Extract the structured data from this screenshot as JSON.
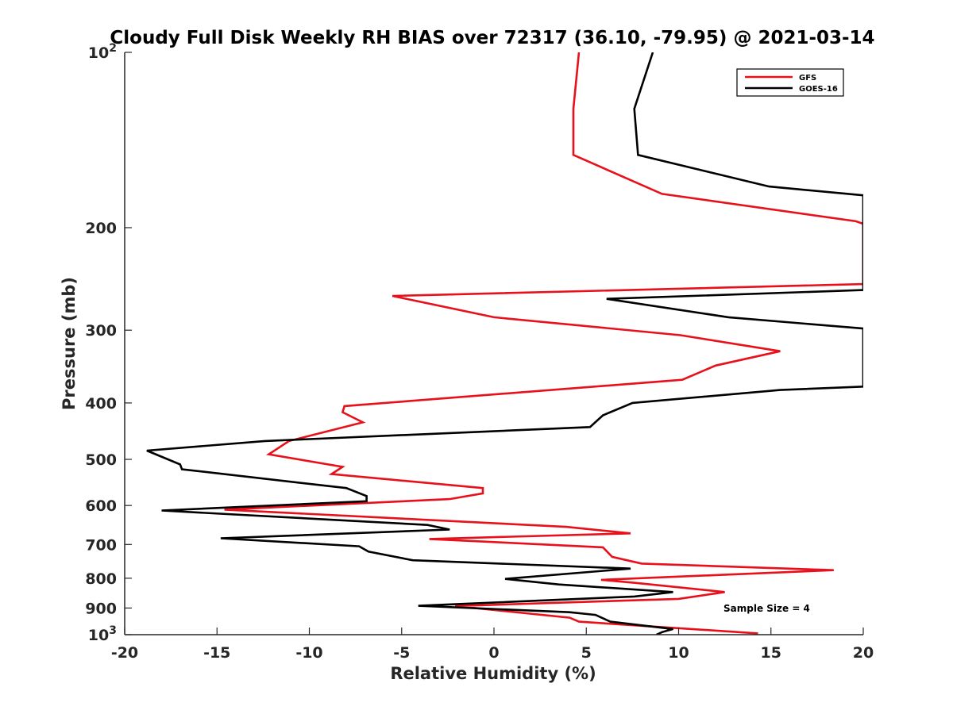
{
  "chart_data": {
    "type": "line",
    "title": "Cloudy Full Disk Weekly RH BIAS over 72317 (36.10, -79.95) @ 2021-03-14",
    "xlabel": "Relative Humidity (%)",
    "ylabel": "Pressure (mb)",
    "xlim": [
      -20,
      20
    ],
    "ylim": [
      100,
      1000
    ],
    "y_scale": "log",
    "y_reversed": true,
    "x_ticks": [
      "-20",
      "-15",
      "-10",
      "-5",
      "0",
      "5",
      "10",
      "15",
      "20"
    ],
    "y_ticks": [
      {
        "value": 100,
        "base": "10",
        "exp": "2"
      },
      {
        "value": 200,
        "label": "200"
      },
      {
        "value": 300,
        "label": "300"
      },
      {
        "value": 400,
        "label": "400"
      },
      {
        "value": 500,
        "label": "500"
      },
      {
        "value": 600,
        "label": "600"
      },
      {
        "value": 700,
        "label": "700"
      },
      {
        "value": 800,
        "label": "800"
      },
      {
        "value": 900,
        "label": "900"
      },
      {
        "value": 1000,
        "base": "10",
        "exp": "3"
      }
    ],
    "legend_position": "top-right",
    "grid": false,
    "annotation": "Sample Size = 4",
    "series": [
      {
        "name": "GFS",
        "color": "#e8101b",
        "points": [
          [
            4.6,
            100
          ],
          [
            4.3,
            125
          ],
          [
            4.3,
            150
          ],
          [
            9.1,
            175
          ],
          [
            19.6,
            195
          ],
          [
            20,
            197
          ],
          [
            20,
            250
          ],
          [
            -5.5,
            262
          ],
          [
            0,
            285
          ],
          [
            10.1,
            306
          ],
          [
            15.5,
            326
          ],
          [
            12,
            345
          ],
          [
            10.2,
            365
          ],
          [
            -8.1,
            405
          ],
          [
            -8.2,
            415
          ],
          [
            -7.1,
            432
          ],
          [
            -11.1,
            465
          ],
          [
            -12.2,
            490
          ],
          [
            -8.2,
            515
          ],
          [
            -8.8,
            530
          ],
          [
            -0.6,
            560
          ],
          [
            -0.6,
            572
          ],
          [
            -2.4,
            585
          ],
          [
            -14.6,
            610
          ],
          [
            3.9,
            653
          ],
          [
            7.4,
            670
          ],
          [
            -3.5,
            685
          ],
          [
            5.9,
            708
          ],
          [
            6.4,
            735
          ],
          [
            8,
            755
          ],
          [
            18.4,
            775
          ],
          [
            5.8,
            805
          ],
          [
            7.7,
            815
          ],
          [
            12.5,
            845
          ],
          [
            10,
            868
          ],
          [
            -2.1,
            893
          ],
          [
            4.1,
            935
          ],
          [
            4.6,
            950
          ],
          [
            14.3,
            995
          ]
        ]
      },
      {
        "name": "GOES-16",
        "color": "#000000",
        "points": [
          [
            8.6,
            100
          ],
          [
            7.6,
            125
          ],
          [
            7.8,
            150
          ],
          [
            14.9,
            170
          ],
          [
            20,
            176
          ],
          [
            20,
            256
          ],
          [
            6.1,
            265
          ],
          [
            12.7,
            285
          ],
          [
            20,
            298
          ],
          [
            20,
            375
          ],
          [
            15.5,
            380
          ],
          [
            7.5,
            400
          ],
          [
            5.9,
            420
          ],
          [
            5.2,
            440
          ],
          [
            -12.4,
            465
          ],
          [
            -18.8,
            483
          ],
          [
            -17,
            510
          ],
          [
            -16.9,
            520
          ],
          [
            -8,
            560
          ],
          [
            -6.9,
            578
          ],
          [
            -6.9,
            590
          ],
          [
            -18,
            612
          ],
          [
            -3.6,
            648
          ],
          [
            -2.4,
            660
          ],
          [
            -14.8,
            683
          ],
          [
            -7.3,
            705
          ],
          [
            -6.8,
            720
          ],
          [
            -4.4,
            745
          ],
          [
            7.4,
            770
          ],
          [
            0.6,
            802
          ],
          [
            3.5,
            820
          ],
          [
            9.7,
            845
          ],
          [
            7.6,
            860
          ],
          [
            -4.1,
            892
          ],
          [
            4.1,
            915
          ],
          [
            5.5,
            925
          ],
          [
            6.3,
            950
          ],
          [
            9.7,
            978
          ],
          [
            9.1,
            990
          ],
          [
            8.8,
            1000
          ]
        ]
      }
    ]
  }
}
